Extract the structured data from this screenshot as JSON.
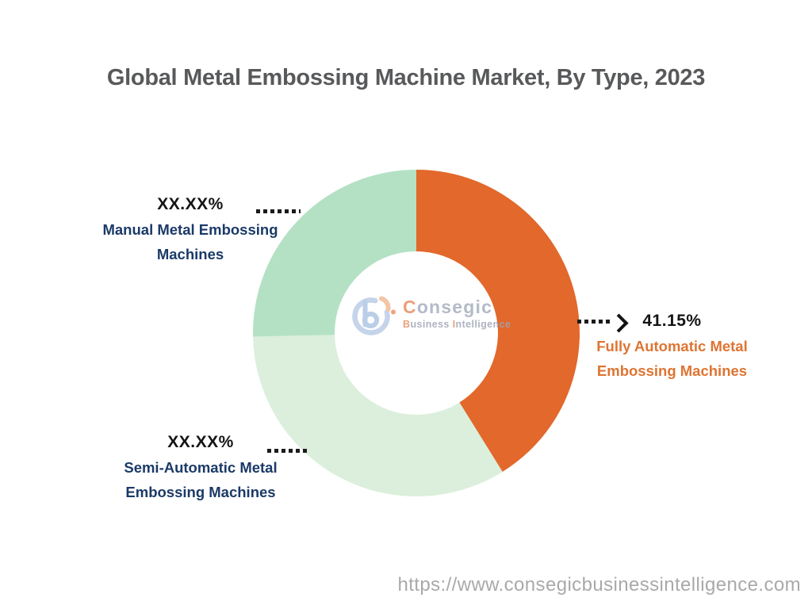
{
  "title": {
    "text": "Global Metal Embossing Machine Market, By Type, 2023",
    "color": "#58595b"
  },
  "chart_data": {
    "type": "pie",
    "subtype": "donut",
    "title": "Global Metal Embossing Machine Market, By Type, 2023",
    "start_angle_deg": 0,
    "direction": "clockwise",
    "inner_radius_ratio": 0.5,
    "segments": [
      {
        "label": "Fully Automatic Metal Embossing Machines",
        "value_label": "41.15%",
        "value_pct": 41.15,
        "masked": false,
        "color": "#e2682b",
        "label_color": "#de7432"
      },
      {
        "label": "Semi-Automatic Metal Embossing Machines",
        "value_label": "XX.XX%",
        "value_pct": 33.5,
        "masked": true,
        "color": "#dbefdc",
        "label_color": "#1b3a67"
      },
      {
        "label": "Manual Metal Embossing Machines",
        "value_label": "XX.XX%",
        "value_pct": 25.35,
        "masked": true,
        "color": "#b4e1c4",
        "label_color": "#1b3a67"
      }
    ]
  },
  "colors": {
    "title_gray": "#58595b",
    "navy_label": "#1b3a67",
    "orange_label": "#de7432",
    "pct_black": "#141414",
    "leader_black": "#1b1b1b",
    "url_gray": "#a9a9a9",
    "logo_blue": "#afc6e4",
    "logo_arc_blue": "#bbcde7",
    "logo_orange": "#e89064"
  },
  "watermark": {
    "name_first": "C",
    "name_rest": "onsegic",
    "sub_first1": "B",
    "sub_rest1": "usiness",
    "sub_first2": "I",
    "sub_rest2": "ntelligence"
  },
  "footer": {
    "url": "https://www.consegicbusinessintelligence.com"
  }
}
